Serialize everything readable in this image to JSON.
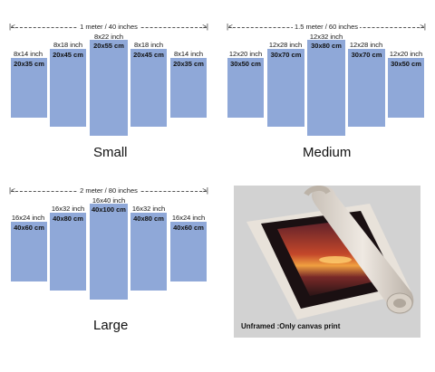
{
  "sets": [
    {
      "key": "small",
      "name": "Small",
      "dimension": "1 meter / 40 inches",
      "panels": [
        {
          "inch": "8x14 inch",
          "cm": "20x35 cm"
        },
        {
          "inch": "8x18 inch",
          "cm": "20x45 cm"
        },
        {
          "inch": "8x22 inch",
          "cm": "20x55 cm"
        },
        {
          "inch": "8x18 inch",
          "cm": "20x45 cm"
        },
        {
          "inch": "8x14 inch",
          "cm": "20x35 cm"
        }
      ]
    },
    {
      "key": "medium",
      "name": "Medium",
      "dimension": "1.5 meter / 60 inches",
      "panels": [
        {
          "inch": "12x20 inch",
          "cm": "30x50 cm"
        },
        {
          "inch": "12x28 inch",
          "cm": "30x70 cm"
        },
        {
          "inch": "12x32 inch",
          "cm": "30x80 cm"
        },
        {
          "inch": "12x28 inch",
          "cm": "30x70 cm"
        },
        {
          "inch": "12x20 inch",
          "cm": "30x50 cm"
        }
      ]
    },
    {
      "key": "large",
      "name": "Large",
      "dimension": "2 meter / 80 inches",
      "panels": [
        {
          "inch": "16x24 inch",
          "cm": "40x60 cm"
        },
        {
          "inch": "16x32 inch",
          "cm": "40x80 cm"
        },
        {
          "inch": "16x40 inch",
          "cm": "40x100 cm"
        },
        {
          "inch": "16x32 inch",
          "cm": "40x80 cm"
        },
        {
          "inch": "16x24 inch",
          "cm": "40x60 cm"
        }
      ]
    }
  ],
  "bracket_left": "|<",
  "bracket_right": ">|",
  "canvas_caption": "Unframed :Only canvas print",
  "colors": {
    "panel": "#8fa8d8",
    "photo_bg": "#d2d2d2"
  }
}
